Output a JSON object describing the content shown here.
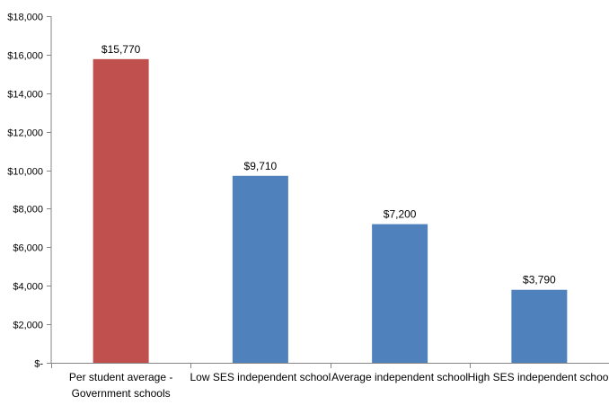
{
  "chart_data": {
    "type": "bar",
    "categories": [
      [
        "Per student average -",
        "Government schools"
      ],
      [
        "Low SES independent school"
      ],
      [
        "Average independent school"
      ],
      [
        "High SES independent school"
      ]
    ],
    "values": [
      15770,
      9710,
      7200,
      3790
    ],
    "value_labels": [
      "$15,770",
      "$9,710",
      "$7,200",
      "$3,790"
    ],
    "bar_colors": [
      "#C0504D",
      "#4F81BD",
      "#4F81BD",
      "#4F81BD"
    ],
    "y_ticks": [
      0,
      2000,
      4000,
      6000,
      8000,
      10000,
      12000,
      14000,
      16000,
      18000
    ],
    "y_tick_labels": [
      "$-",
      "$2,000",
      "$4,000",
      "$6,000",
      "$8,000",
      "$10,000",
      "$12,000",
      "$14,000",
      "$16,000",
      "$18,000"
    ],
    "ylim": [
      0,
      18000
    ],
    "title": "",
    "xlabel": "",
    "ylabel": "",
    "grid": false,
    "legend": "none"
  }
}
